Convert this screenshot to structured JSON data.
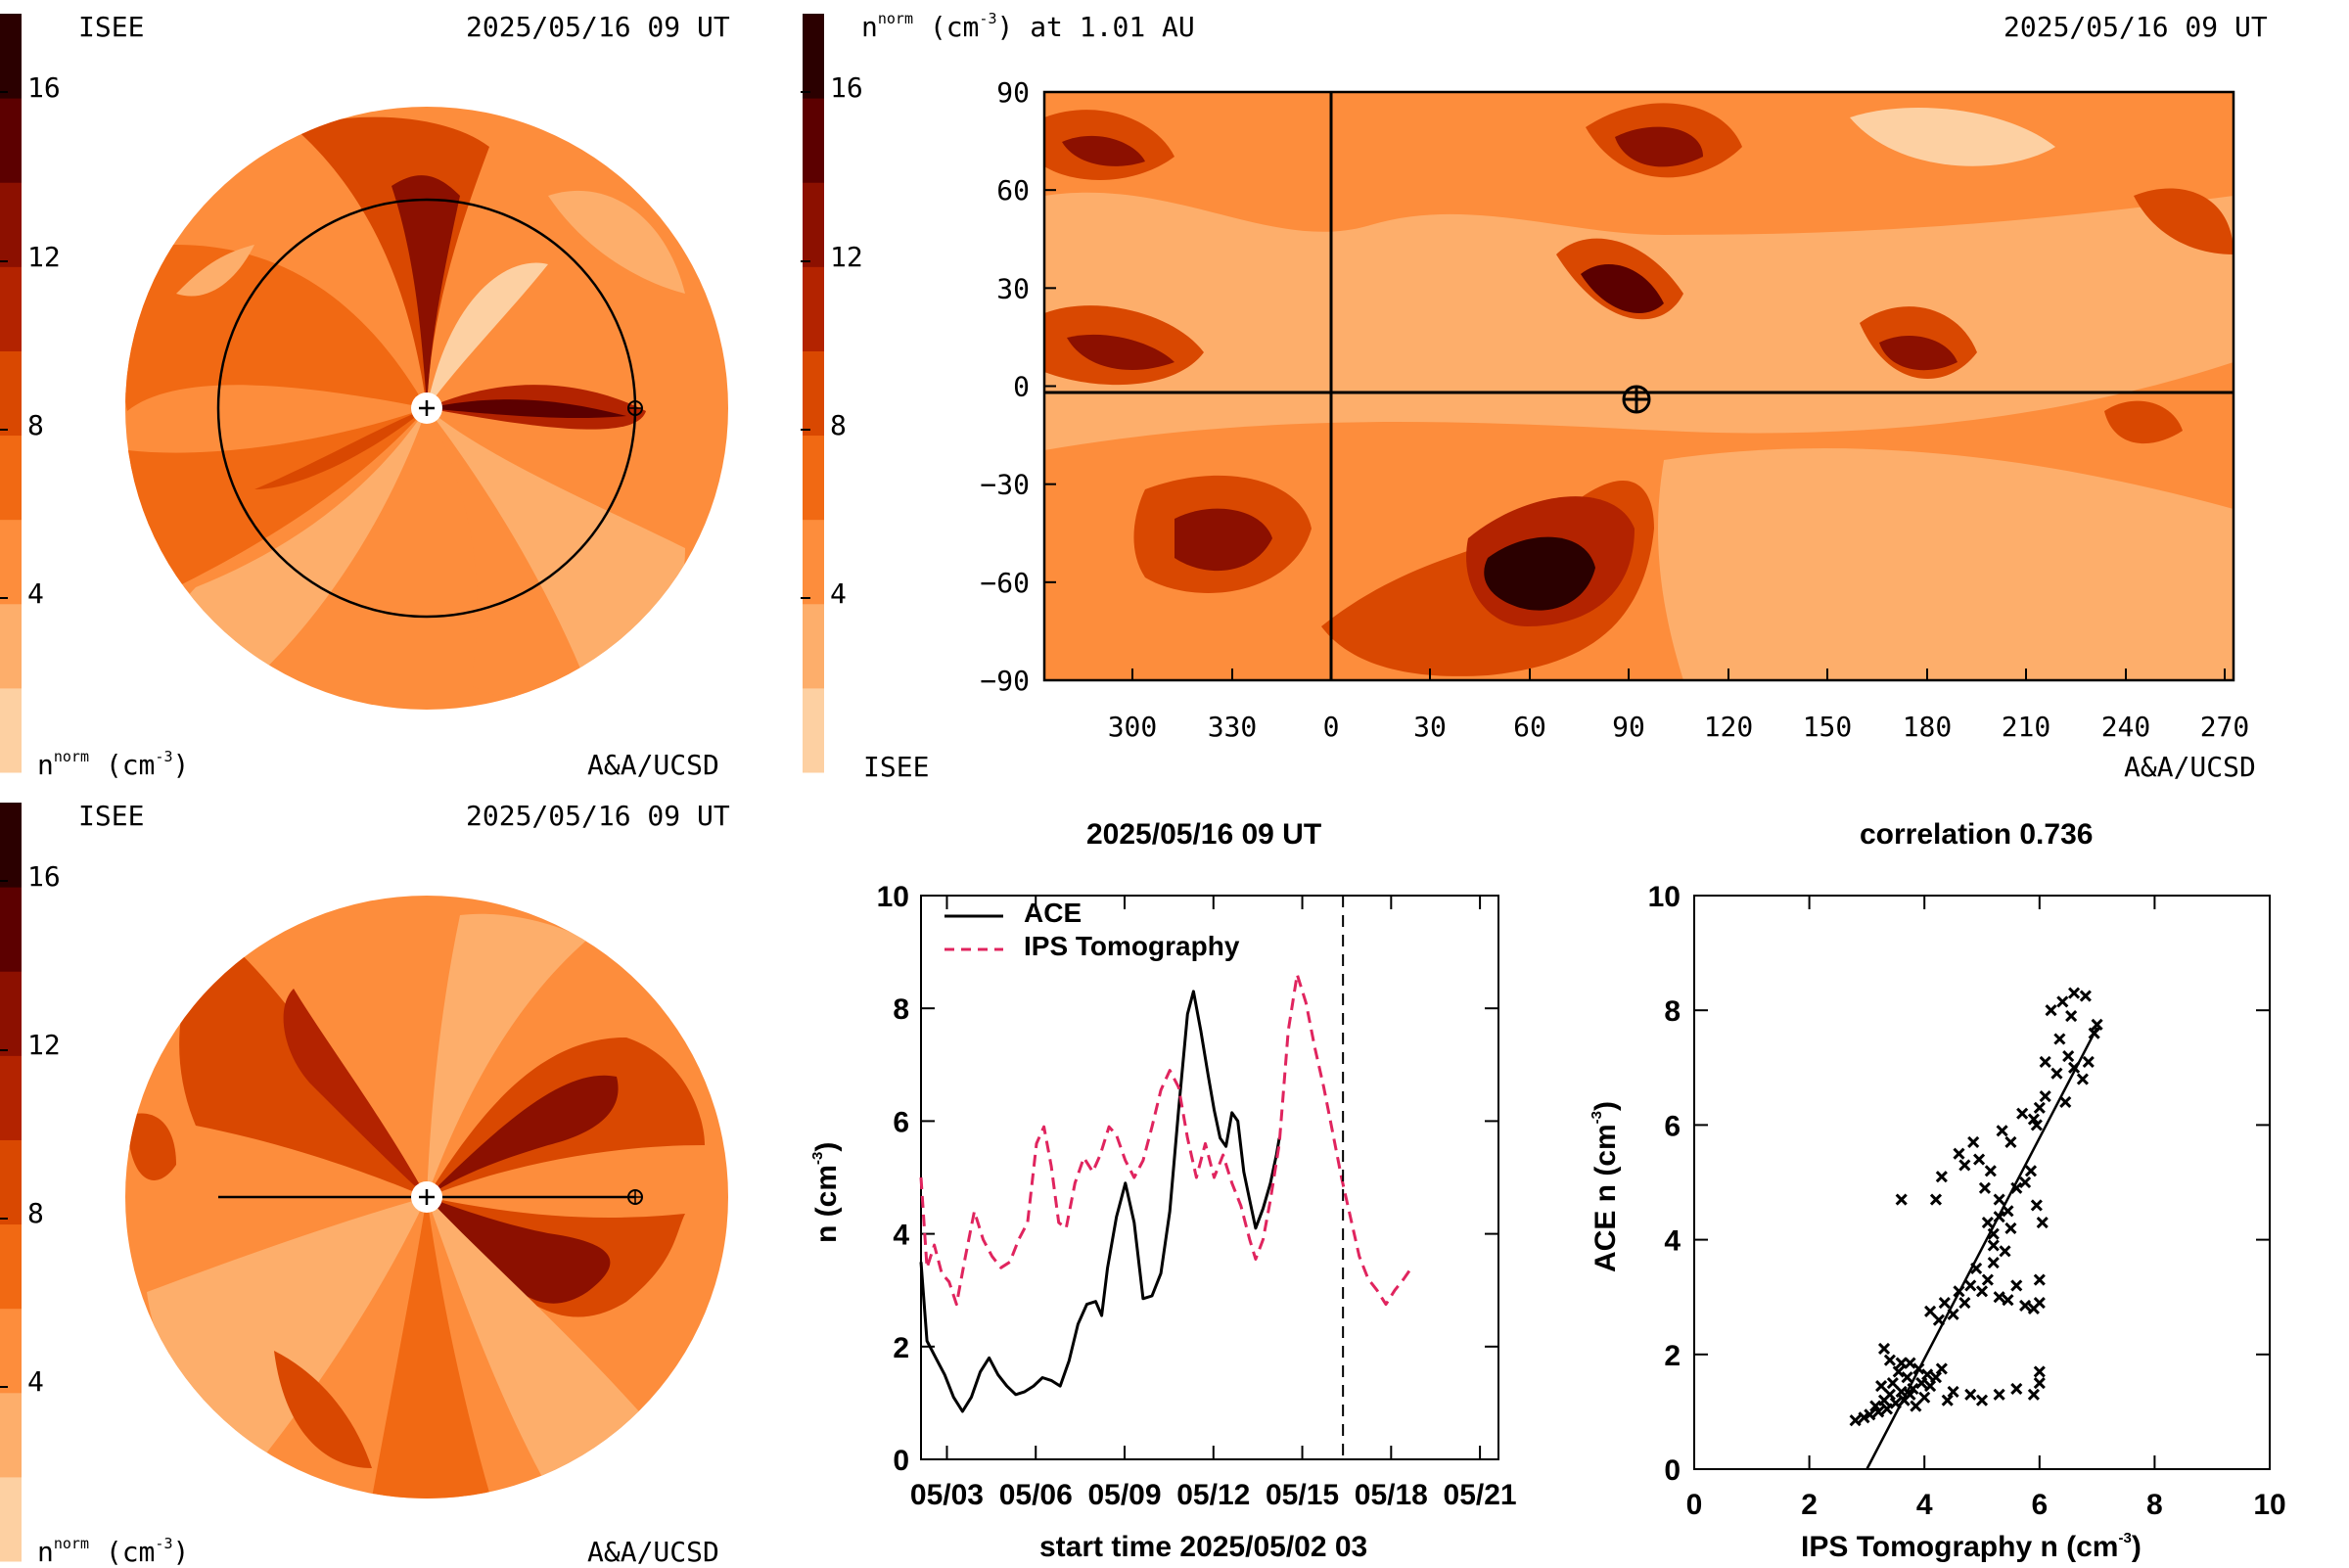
{
  "colors": {
    "levels": [
      "#fdd0a2",
      "#fdae6b",
      "#fd8d3c",
      "#f16913",
      "#d94801",
      "#b32300",
      "#8c1000",
      "#5c0000",
      "#2b0000"
    ],
    "ace_line": "#000000",
    "ips_line": "#e0245e"
  },
  "colorbar": {
    "ticks": [
      "4",
      "8",
      "12",
      "16"
    ]
  },
  "panel_top_left": {
    "source_label": "ISEE",
    "timestamp": "2025/05/16 09 UT",
    "quantity_label": "n",
    "quantity_sup": "norm",
    "quantity_unit": "(cm",
    "quantity_unit_sup": "-3",
    "quantity_unit_end": ")",
    "credit": "A&A/UCSD",
    "center_marker": "+",
    "earth_marker": "⊕"
  },
  "panel_top_right": {
    "title_quantity": "n",
    "title_sup": "norm",
    "title_unit": "(cm",
    "title_unit_sup": "-3",
    "title_unit_end": ") at 1.01 AU",
    "timestamp": "2025/05/16 09 UT",
    "source_label": "ISEE",
    "credit": "A&A/UCSD",
    "earth_marker": "⊕"
  },
  "panel_bottom_left": {
    "source_label": "ISEE",
    "timestamp": "2025/05/16 09 UT",
    "quantity_label": "n",
    "quantity_sup": "norm",
    "quantity_unit": "(cm",
    "quantity_unit_sup": "-3",
    "quantity_unit_end": ")",
    "credit": "A&A/UCSD",
    "center_marker": "+",
    "earth_marker": "⊕"
  },
  "chart_data": [
    {
      "type": "heatmap",
      "projection": "polar (ecliptic plane)",
      "legend_ticks": [
        4,
        8,
        12,
        16
      ]
    },
    {
      "type": "heatmap",
      "projection": "Carrington longitude vs latitude",
      "x_ticks": [
        "300",
        "330",
        "0",
        "30",
        "60",
        "90",
        "120",
        "150",
        "180",
        "210",
        "240",
        "270"
      ],
      "y_ticks": [
        "90",
        "60",
        "30",
        "0",
        "−30",
        "−60",
        "−90"
      ],
      "ylim": [
        -90,
        90
      ],
      "earth_position": {
        "longitude": 90,
        "latitude": -2
      },
      "legend_ticks": [
        4,
        8,
        12,
        16
      ]
    },
    {
      "type": "heatmap",
      "projection": "polar (meridional plane)",
      "legend_ticks": [
        4,
        8,
        12,
        16
      ]
    },
    {
      "type": "line",
      "title": "2025/05/16 09 UT",
      "xlabel": "start time 2025/05/02 03",
      "ylabel_main": "n (cm",
      "ylabel_sup": "-3",
      "ylabel_end": ")",
      "x_ticks": [
        "05/03",
        "05/06",
        "05/09",
        "05/12",
        "05/15",
        "05/18",
        "05/21"
      ],
      "x_tick_days": [
        0.875,
        3.875,
        6.875,
        9.875,
        12.875,
        15.875,
        18.875
      ],
      "y_ticks": [
        "0",
        "2",
        "4",
        "6",
        "8",
        "10"
      ],
      "ylim": [
        0,
        10
      ],
      "xlim_days": [
        0,
        19.5
      ],
      "current_time_day": 14.25,
      "series": [
        {
          "name": "ACE",
          "style": "solid",
          "points": [
            [
              0.0,
              3.5
            ],
            [
              0.2,
              2.1
            ],
            [
              0.5,
              1.8
            ],
            [
              0.8,
              1.5
            ],
            [
              1.1,
              1.1
            ],
            [
              1.4,
              0.85
            ],
            [
              1.7,
              1.1
            ],
            [
              2.0,
              1.55
            ],
            [
              2.3,
              1.8
            ],
            [
              2.6,
              1.5
            ],
            [
              2.9,
              1.3
            ],
            [
              3.2,
              1.15
            ],
            [
              3.5,
              1.2
            ],
            [
              3.8,
              1.3
            ],
            [
              4.1,
              1.45
            ],
            [
              4.4,
              1.4
            ],
            [
              4.7,
              1.3
            ],
            [
              5.0,
              1.75
            ],
            [
              5.3,
              2.4
            ],
            [
              5.6,
              2.75
            ],
            [
              5.9,
              2.8
            ],
            [
              6.1,
              2.55
            ],
            [
              6.3,
              3.4
            ],
            [
              6.6,
              4.3
            ],
            [
              6.9,
              4.9
            ],
            [
              7.2,
              4.2
            ],
            [
              7.5,
              2.85
            ],
            [
              7.8,
              2.9
            ],
            [
              8.1,
              3.3
            ],
            [
              8.4,
              4.4
            ],
            [
              8.7,
              6.2
            ],
            [
              9.0,
              7.9
            ],
            [
              9.2,
              8.3
            ],
            [
              9.45,
              7.6
            ],
            [
              9.7,
              6.8
            ],
            [
              9.9,
              6.2
            ],
            [
              10.1,
              5.7
            ],
            [
              10.3,
              5.55
            ],
            [
              10.5,
              6.15
            ],
            [
              10.7,
              6.0
            ],
            [
              10.9,
              5.1
            ],
            [
              11.1,
              4.6
            ],
            [
              11.3,
              4.1
            ],
            [
              11.55,
              4.45
            ],
            [
              11.8,
              4.9
            ],
            [
              12.0,
              5.4
            ],
            [
              12.1,
              5.7
            ]
          ]
        },
        {
          "name": "IPS Tomography",
          "style": "dashed",
          "points": [
            [
              0.0,
              5.0
            ],
            [
              0.2,
              3.4
            ],
            [
              0.45,
              3.8
            ],
            [
              0.7,
              3.3
            ],
            [
              0.95,
              3.15
            ],
            [
              1.2,
              2.75
            ],
            [
              1.5,
              3.6
            ],
            [
              1.8,
              4.4
            ],
            [
              2.1,
              3.9
            ],
            [
              2.4,
              3.6
            ],
            [
              2.7,
              3.4
            ],
            [
              3.0,
              3.5
            ],
            [
              3.3,
              3.9
            ],
            [
              3.6,
              4.2
            ],
            [
              3.9,
              5.6
            ],
            [
              4.15,
              5.9
            ],
            [
              4.4,
              5.2
            ],
            [
              4.65,
              4.2
            ],
            [
              4.9,
              4.1
            ],
            [
              5.2,
              4.9
            ],
            [
              5.5,
              5.35
            ],
            [
              5.8,
              5.1
            ],
            [
              6.05,
              5.4
            ],
            [
              6.35,
              5.9
            ],
            [
              6.6,
              5.75
            ],
            [
              6.9,
              5.3
            ],
            [
              7.2,
              5.0
            ],
            [
              7.5,
              5.3
            ],
            [
              7.8,
              5.9
            ],
            [
              8.1,
              6.55
            ],
            [
              8.4,
              6.9
            ],
            [
              8.7,
              6.6
            ],
            [
              9.0,
              5.7
            ],
            [
              9.3,
              5.0
            ],
            [
              9.6,
              5.6
            ],
            [
              9.9,
              5.0
            ],
            [
              10.2,
              5.4
            ],
            [
              10.5,
              4.9
            ],
            [
              10.8,
              4.5
            ],
            [
              11.1,
              3.9
            ],
            [
              11.3,
              3.55
            ],
            [
              11.55,
              3.9
            ],
            [
              11.8,
              4.6
            ],
            [
              12.1,
              5.6
            ],
            [
              12.4,
              7.6
            ],
            [
              12.7,
              8.6
            ],
            [
              13.0,
              8.1
            ],
            [
              13.3,
              7.3
            ],
            [
              13.6,
              6.6
            ],
            [
              13.9,
              5.8
            ],
            [
              14.2,
              5.0
            ],
            [
              14.5,
              4.3
            ],
            [
              14.8,
              3.6
            ],
            [
              15.1,
              3.2
            ],
            [
              15.4,
              3.0
            ],
            [
              15.7,
              2.75
            ],
            [
              16.0,
              3.0
            ],
            [
              16.3,
              3.2
            ],
            [
              16.5,
              3.35
            ]
          ]
        }
      ]
    },
    {
      "type": "scatter",
      "title": "correlation 0.736",
      "xlabel_main": "IPS Tomography n (cm",
      "xlabel_sup": "-3",
      "xlabel_end": ")",
      "ylabel_main": "ACE n (cm",
      "ylabel_sup": "-3",
      "ylabel_end": ")",
      "x_ticks": [
        "0",
        "2",
        "4",
        "6",
        "8",
        "10"
      ],
      "y_ticks": [
        "0",
        "2",
        "4",
        "6",
        "8",
        "10"
      ],
      "xlim": [
        0,
        10
      ],
      "ylim": [
        0,
        10
      ],
      "fit_line": [
        [
          3.0,
          -0.2
        ],
        [
          7.0,
          7.7
        ]
      ],
      "points": [
        [
          2.8,
          0.85
        ],
        [
          2.95,
          0.9
        ],
        [
          3.05,
          0.95
        ],
        [
          3.15,
          1.1
        ],
        [
          3.2,
          1.0
        ],
        [
          3.3,
          1.2
        ],
        [
          3.35,
          1.05
        ],
        [
          3.4,
          1.3
        ],
        [
          3.45,
          1.5
        ],
        [
          3.5,
          1.15
        ],
        [
          3.55,
          1.7
        ],
        [
          3.6,
          1.35
        ],
        [
          3.65,
          1.2
        ],
        [
          3.7,
          1.6
        ],
        [
          3.75,
          1.85
        ],
        [
          3.8,
          1.4
        ],
        [
          3.85,
          1.1
        ],
        [
          3.9,
          1.75
        ],
        [
          3.95,
          1.5
        ],
        [
          4.0,
          1.25
        ],
        [
          4.05,
          1.65
        ],
        [
          3.3,
          2.1
        ],
        [
          3.4,
          1.9
        ],
        [
          3.25,
          1.45
        ],
        [
          3.6,
          1.85
        ],
        [
          3.75,
          1.3
        ],
        [
          4.1,
          1.45
        ],
        [
          4.2,
          1.6
        ],
        [
          4.3,
          1.75
        ],
        [
          4.4,
          1.2
        ],
        [
          4.5,
          1.35
        ],
        [
          4.1,
          2.75
        ],
        [
          4.25,
          2.6
        ],
        [
          4.35,
          2.9
        ],
        [
          4.5,
          2.7
        ],
        [
          4.6,
          3.1
        ],
        [
          4.7,
          2.9
        ],
        [
          4.8,
          3.2
        ],
        [
          4.9,
          3.5
        ],
        [
          5.0,
          3.1
        ],
        [
          5.1,
          3.3
        ],
        [
          5.2,
          3.6
        ],
        [
          5.3,
          3.0
        ],
        [
          5.45,
          2.95
        ],
        [
          5.6,
          3.2
        ],
        [
          5.75,
          2.85
        ],
        [
          5.9,
          2.8
        ],
        [
          6.0,
          3.3
        ],
        [
          6.0,
          2.9
        ],
        [
          4.8,
          1.3
        ],
        [
          5.0,
          1.2
        ],
        [
          5.3,
          1.3
        ],
        [
          5.6,
          1.4
        ],
        [
          5.9,
          1.3
        ],
        [
          6.0,
          1.7
        ],
        [
          6.0,
          1.5
        ],
        [
          3.6,
          4.7
        ],
        [
          4.2,
          4.7
        ],
        [
          4.3,
          5.1
        ],
        [
          4.6,
          5.5
        ],
        [
          4.7,
          5.3
        ],
        [
          4.85,
          5.7
        ],
        [
          4.95,
          5.4
        ],
        [
          5.05,
          4.9
        ],
        [
          5.1,
          4.3
        ],
        [
          5.2,
          4.1
        ],
        [
          5.3,
          4.4
        ],
        [
          5.4,
          3.8
        ],
        [
          5.5,
          4.2
        ],
        [
          5.35,
          5.9
        ],
        [
          5.5,
          5.7
        ],
        [
          5.6,
          4.9
        ],
        [
          5.75,
          5.0
        ],
        [
          5.85,
          5.2
        ],
        [
          5.95,
          4.6
        ],
        [
          6.05,
          4.3
        ],
        [
          5.2,
          3.9
        ],
        [
          5.3,
          4.7
        ],
        [
          5.15,
          5.2
        ],
        [
          5.45,
          4.5
        ],
        [
          5.7,
          6.2
        ],
        [
          5.95,
          6.0
        ],
        [
          6.1,
          6.5
        ],
        [
          6.3,
          6.9
        ],
        [
          6.35,
          7.5
        ],
        [
          6.45,
          6.4
        ],
        [
          6.6,
          7.0
        ],
        [
          6.75,
          6.8
        ],
        [
          6.85,
          7.1
        ],
        [
          6.95,
          7.6
        ],
        [
          7.0,
          7.75
        ],
        [
          6.5,
          7.2
        ],
        [
          6.1,
          7.1
        ],
        [
          6.2,
          8.0
        ],
        [
          6.4,
          8.15
        ],
        [
          6.6,
          8.3
        ],
        [
          6.8,
          8.25
        ],
        [
          6.55,
          7.9
        ],
        [
          5.9,
          6.1
        ],
        [
          6.0,
          6.3
        ]
      ]
    }
  ]
}
